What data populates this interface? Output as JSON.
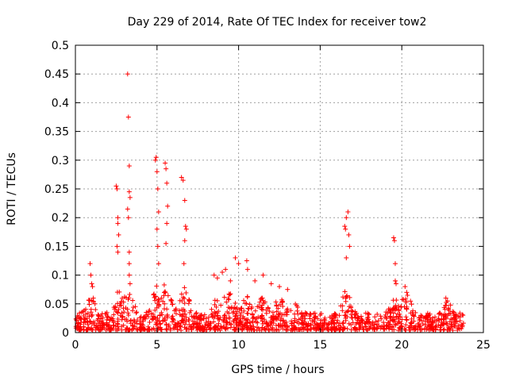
{
  "chart_data": {
    "type": "scatter",
    "title": "Day 229 of 2014, Rate Of TEC Index for receiver tow2",
    "xlabel": "GPS time / hours",
    "ylabel": "ROTI / TECUs",
    "xlim": [
      0,
      25
    ],
    "ylim": [
      0,
      0.5
    ],
    "grid": true,
    "marker": "+",
    "marker_color": "#ff0000",
    "x_ticks": [
      "0",
      "5",
      "10",
      "15",
      "20",
      "25"
    ],
    "y_ticks": [
      "0",
      "0.05",
      "0.1",
      "0.15",
      "0.2",
      "0.25",
      "0.3",
      "0.35",
      "0.4",
      "0.45",
      "0.5"
    ],
    "baseline": {
      "x_start": 0,
      "x_end": 23.8,
      "typical_max": 0.03,
      "description_of_activity": "dense low-level ROTI values between 0 and ~0.03 TECU across the whole day"
    },
    "series": [
      {
        "name": "tow2",
        "x": [
          0.9,
          0.95,
          1.0,
          1.05,
          1.1,
          1.2,
          2.5,
          2.55,
          2.6,
          2.6,
          2.65,
          2.55,
          2.6,
          3.2,
          3.25,
          3.3,
          3.3,
          3.35,
          3.2,
          3.25,
          3.3,
          3.3,
          3.3,
          3.35,
          4.9,
          4.95,
          5.0,
          5.05,
          5.1,
          5.0,
          5.05,
          5.1,
          5.5,
          5.55,
          5.6,
          5.65,
          5.6,
          5.55,
          6.5,
          6.6,
          6.7,
          6.75,
          6.8,
          6.7,
          6.65,
          8.5,
          8.7,
          9.0,
          9.2,
          9.5,
          9.8,
          10.0,
          10.5,
          10.55,
          11.0,
          11.5,
          12.0,
          12.5,
          13.0,
          16.5,
          16.55,
          16.6,
          16.7,
          16.75,
          16.8,
          16.6,
          19.5,
          19.55,
          19.6,
          19.6,
          19.65,
          20.2,
          20.3,
          22.7,
          22.8
        ],
        "y": [
          0.12,
          0.1,
          0.085,
          0.08,
          0.06,
          0.05,
          0.255,
          0.25,
          0.2,
          0.19,
          0.17,
          0.15,
          0.14,
          0.45,
          0.375,
          0.29,
          0.245,
          0.235,
          0.215,
          0.2,
          0.14,
          0.12,
          0.1,
          0.085,
          0.3,
          0.305,
          0.28,
          0.25,
          0.21,
          0.18,
          0.15,
          0.12,
          0.295,
          0.285,
          0.26,
          0.22,
          0.19,
          0.155,
          0.27,
          0.265,
          0.23,
          0.185,
          0.18,
          0.16,
          0.12,
          0.1,
          0.095,
          0.105,
          0.11,
          0.09,
          0.13,
          0.12,
          0.125,
          0.11,
          0.09,
          0.1,
          0.085,
          0.08,
          0.075,
          0.185,
          0.18,
          0.2,
          0.21,
          0.17,
          0.15,
          0.13,
          0.165,
          0.16,
          0.12,
          0.09,
          0.085,
          0.08,
          0.07,
          0.06,
          0.055
        ]
      }
    ]
  }
}
